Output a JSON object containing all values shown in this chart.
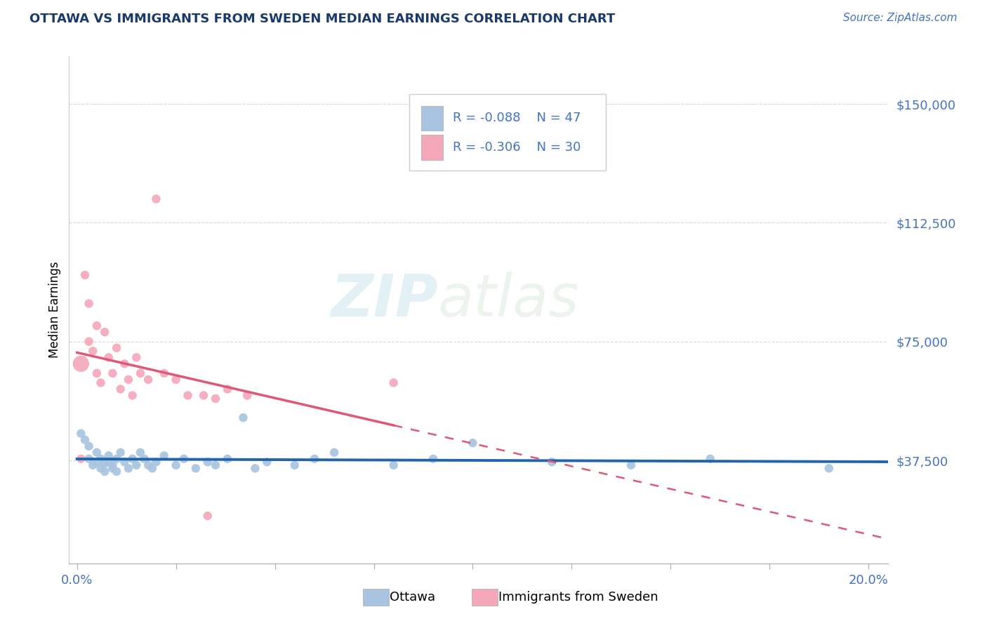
{
  "title": "OTTAWA VS IMMIGRANTS FROM SWEDEN MEDIAN EARNINGS CORRELATION CHART",
  "source": "Source: ZipAtlas.com",
  "ylabel": "Median Earnings",
  "y_ticks": [
    37500,
    75000,
    112500,
    150000
  ],
  "y_tick_labels": [
    "$37,500",
    "$75,000",
    "$112,500",
    "$150,000"
  ],
  "x_ticks": [
    0.0,
    0.05,
    0.1,
    0.15,
    0.2
  ],
  "x_tick_labels": [
    "",
    "",
    "",
    "",
    ""
  ],
  "xlim": [
    -0.002,
    0.205
  ],
  "ylim": [
    5000,
    165000
  ],
  "watermark_zip": "ZIP",
  "watermark_atlas": "atlas",
  "legend_r1": "R = -0.088",
  "legend_n1": "N = 47",
  "legend_r2": "R = -0.306",
  "legend_n2": "N = 30",
  "ottawa_color": "#a8c4e0",
  "ottawa_line_color": "#2166ac",
  "sweden_color": "#f4a7b9",
  "sweden_line_color": "#e05878",
  "title_color": "#1a3a6b",
  "source_color": "#4472c4",
  "ytick_color": "#4472c4",
  "xtick_color": "#4472c4",
  "background_color": "#ffffff",
  "grid_color": "#d0d0d0",
  "ottawa_points": [
    [
      0.001,
      46000
    ],
    [
      0.002,
      44000
    ],
    [
      0.003,
      38000
    ],
    [
      0.003,
      42000
    ],
    [
      0.004,
      36000
    ],
    [
      0.005,
      40000
    ],
    [
      0.005,
      37000
    ],
    [
      0.006,
      35000
    ],
    [
      0.006,
      38000
    ],
    [
      0.007,
      36500
    ],
    [
      0.007,
      34000
    ],
    [
      0.008,
      39000
    ],
    [
      0.008,
      37000
    ],
    [
      0.009,
      35000
    ],
    [
      0.009,
      36000
    ],
    [
      0.01,
      38000
    ],
    [
      0.01,
      34000
    ],
    [
      0.011,
      40000
    ],
    [
      0.012,
      37000
    ],
    [
      0.013,
      35000
    ],
    [
      0.014,
      38000
    ],
    [
      0.015,
      36000
    ],
    [
      0.016,
      40000
    ],
    [
      0.017,
      38000
    ],
    [
      0.018,
      36000
    ],
    [
      0.019,
      35000
    ],
    [
      0.02,
      37000
    ],
    [
      0.022,
      39000
    ],
    [
      0.025,
      36000
    ],
    [
      0.027,
      38000
    ],
    [
      0.03,
      35000
    ],
    [
      0.033,
      37000
    ],
    [
      0.035,
      36000
    ],
    [
      0.038,
      38000
    ],
    [
      0.042,
      51000
    ],
    [
      0.045,
      35000
    ],
    [
      0.048,
      37000
    ],
    [
      0.055,
      36000
    ],
    [
      0.06,
      38000
    ],
    [
      0.065,
      40000
    ],
    [
      0.08,
      36000
    ],
    [
      0.09,
      38000
    ],
    [
      0.1,
      43000
    ],
    [
      0.12,
      37000
    ],
    [
      0.14,
      36000
    ],
    [
      0.16,
      38000
    ],
    [
      0.19,
      35000
    ]
  ],
  "ottawa_sizes": [
    80,
    80,
    80,
    80,
    80,
    80,
    80,
    80,
    80,
    80,
    80,
    80,
    80,
    80,
    80,
    80,
    80,
    80,
    80,
    80,
    80,
    80,
    80,
    80,
    80,
    80,
    80,
    80,
    80,
    80,
    80,
    80,
    80,
    80,
    80,
    80,
    80,
    80,
    80,
    80,
    80,
    80,
    80,
    80,
    80,
    80,
    80
  ],
  "sweden_points": [
    [
      0.001,
      68000
    ],
    [
      0.001,
      38000
    ],
    [
      0.002,
      96000
    ],
    [
      0.003,
      87000
    ],
    [
      0.003,
      75000
    ],
    [
      0.004,
      72000
    ],
    [
      0.005,
      65000
    ],
    [
      0.005,
      80000
    ],
    [
      0.006,
      62000
    ],
    [
      0.007,
      78000
    ],
    [
      0.008,
      70000
    ],
    [
      0.009,
      65000
    ],
    [
      0.01,
      73000
    ],
    [
      0.011,
      60000
    ],
    [
      0.012,
      68000
    ],
    [
      0.013,
      63000
    ],
    [
      0.014,
      58000
    ],
    [
      0.015,
      70000
    ],
    [
      0.016,
      65000
    ],
    [
      0.018,
      63000
    ],
    [
      0.02,
      120000
    ],
    [
      0.022,
      65000
    ],
    [
      0.025,
      63000
    ],
    [
      0.028,
      58000
    ],
    [
      0.032,
      58000
    ],
    [
      0.035,
      57000
    ],
    [
      0.038,
      60000
    ],
    [
      0.043,
      58000
    ],
    [
      0.08,
      62000
    ],
    [
      0.033,
      20000
    ]
  ],
  "sweden_sizes": [
    280,
    80,
    80,
    80,
    80,
    80,
    80,
    80,
    80,
    80,
    80,
    80,
    80,
    80,
    80,
    80,
    80,
    80,
    80,
    80,
    80,
    80,
    80,
    80,
    80,
    80,
    80,
    80,
    80,
    80
  ]
}
